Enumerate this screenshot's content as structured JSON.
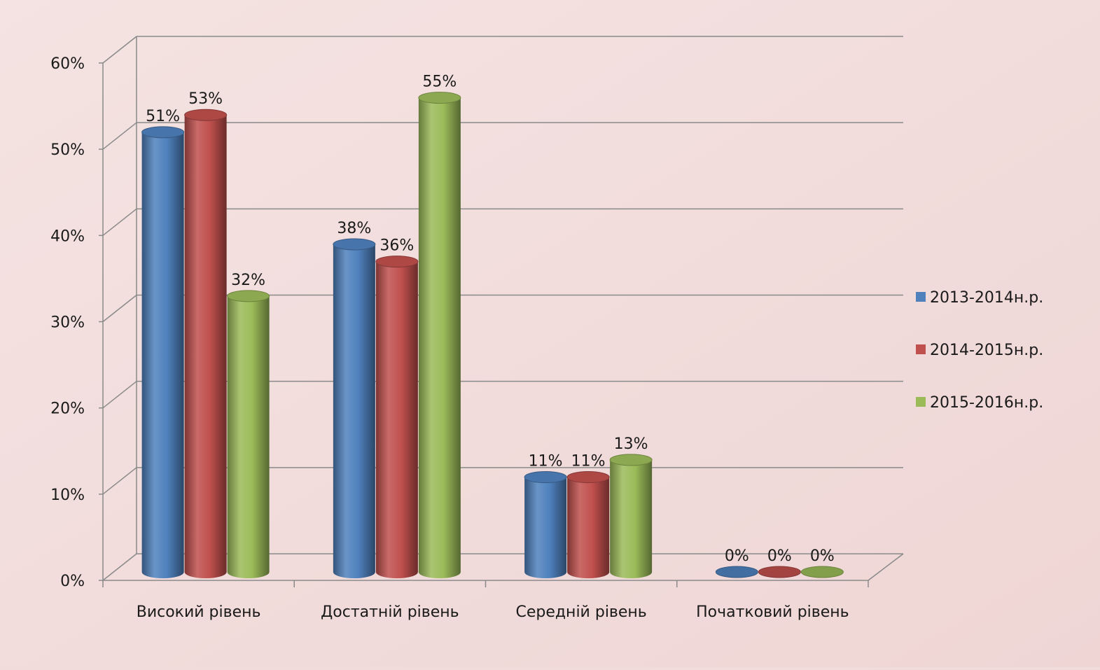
{
  "chart_data": {
    "type": "bar",
    "title": "",
    "xlabel": "",
    "ylabel": "",
    "ylim": [
      0,
      0.6
    ],
    "yticks": [
      "0%",
      "10%",
      "20%",
      "30%",
      "40%",
      "50%",
      "60%"
    ],
    "categories": [
      "Високий рівень",
      "Достатній рівень",
      "Середній рівень",
      "Початковий рівень"
    ],
    "series": [
      {
        "name": "2013-2014н.р.",
        "values": [
          0.51,
          0.38,
          0.11,
          0.0
        ],
        "labels": [
          "51%",
          "38%",
          "11%",
          "0%"
        ],
        "color": "#4f81bd"
      },
      {
        "name": "2014-2015н.р.",
        "values": [
          0.53,
          0.36,
          0.11,
          0.0
        ],
        "labels": [
          "53%",
          "36%",
          "11%",
          "0%"
        ],
        "color": "#c0504d"
      },
      {
        "name": "2015-2016н.р.",
        "values": [
          0.32,
          0.55,
          0.13,
          0.0
        ],
        "labels": [
          "32%",
          "55%",
          "13%",
          "0%"
        ],
        "color": "#9bbb59"
      }
    ],
    "grid": true,
    "legend": "right",
    "style": "3d-cylinder"
  }
}
